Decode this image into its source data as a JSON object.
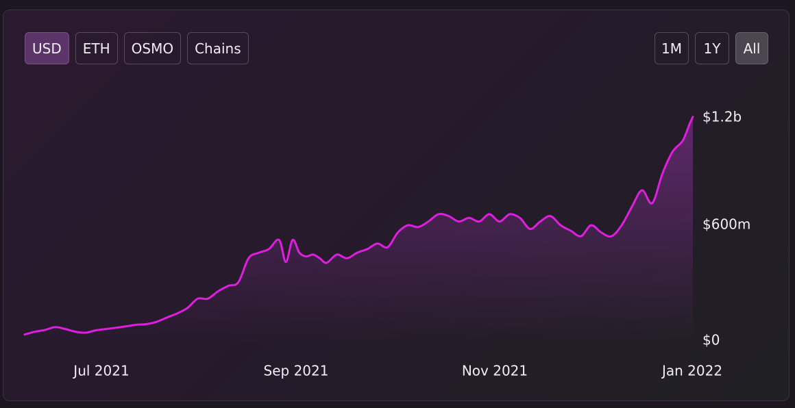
{
  "asset_buttons": [
    {
      "label": "USD",
      "active": true
    },
    {
      "label": "ETH",
      "active": false
    },
    {
      "label": "OSMO",
      "active": false
    },
    {
      "label": "Chains",
      "active": false
    }
  ],
  "range_buttons": [
    {
      "label": "1M",
      "active": false
    },
    {
      "label": "1Y",
      "active": false
    },
    {
      "label": "All",
      "active": true
    }
  ],
  "colors": {
    "line": "#e01ee0",
    "area_top": "#6a2a78"
  },
  "chart_data": {
    "type": "area",
    "title": "",
    "xlabel": "",
    "ylabel": "",
    "x_ticks": [
      "Jul 2021",
      "Sep 2021",
      "Nov 2021",
      "Jan 2022"
    ],
    "y_ticks": [
      "$0",
      "$600m",
      "$1.2b"
    ],
    "ylim": [
      0,
      1200
    ],
    "y_unit": "millions USD",
    "grid": false,
    "legend": "none",
    "series": [
      {
        "x": [
          "2021-06-18",
          "2021-06-21",
          "2021-06-24",
          "2021-06-27",
          "2021-06-30",
          "2021-07-03",
          "2021-07-06",
          "2021-07-09",
          "2021-07-12",
          "2021-07-15",
          "2021-07-18",
          "2021-07-21",
          "2021-07-24",
          "2021-07-27",
          "2021-07-30",
          "2021-08-02",
          "2021-08-05",
          "2021-08-08",
          "2021-08-11",
          "2021-08-14",
          "2021-08-17",
          "2021-08-20",
          "2021-08-23",
          "2021-08-26",
          "2021-08-29",
          "2021-09-01",
          "2021-09-03",
          "2021-09-05",
          "2021-09-07",
          "2021-09-09",
          "2021-09-11",
          "2021-09-13",
          "2021-09-15",
          "2021-09-18",
          "2021-09-21",
          "2021-09-24",
          "2021-09-27",
          "2021-09-30",
          "2021-10-03",
          "2021-10-06",
          "2021-10-09",
          "2021-10-12",
          "2021-10-15",
          "2021-10-18",
          "2021-10-21",
          "2021-10-24",
          "2021-10-27",
          "2021-10-30",
          "2021-11-02",
          "2021-11-05",
          "2021-11-08",
          "2021-11-11",
          "2021-11-14",
          "2021-11-17",
          "2021-11-20",
          "2021-11-23",
          "2021-11-26",
          "2021-11-29",
          "2021-12-02",
          "2021-12-05",
          "2021-12-08",
          "2021-12-11",
          "2021-12-14",
          "2021-12-17",
          "2021-12-20",
          "2021-12-23",
          "2021-12-26",
          "2021-12-29",
          "2021-12-31",
          "2022-01-01"
        ],
        "values": [
          5,
          20,
          30,
          45,
          35,
          20,
          15,
          28,
          35,
          42,
          50,
          58,
          62,
          75,
          98,
          120,
          150,
          200,
          200,
          240,
          270,
          290,
          420,
          450,
          470,
          520,
          400,
          520,
          450,
          430,
          440,
          420,
          395,
          440,
          420,
          450,
          470,
          500,
          480,
          560,
          600,
          590,
          620,
          660,
          650,
          620,
          640,
          620,
          660,
          620,
          660,
          640,
          580,
          620,
          650,
          600,
          570,
          540,
          600,
          560,
          540,
          600,
          700,
          790,
          720,
          880,
          1000,
          1060,
          1150,
          1190
        ]
      }
    ]
  }
}
